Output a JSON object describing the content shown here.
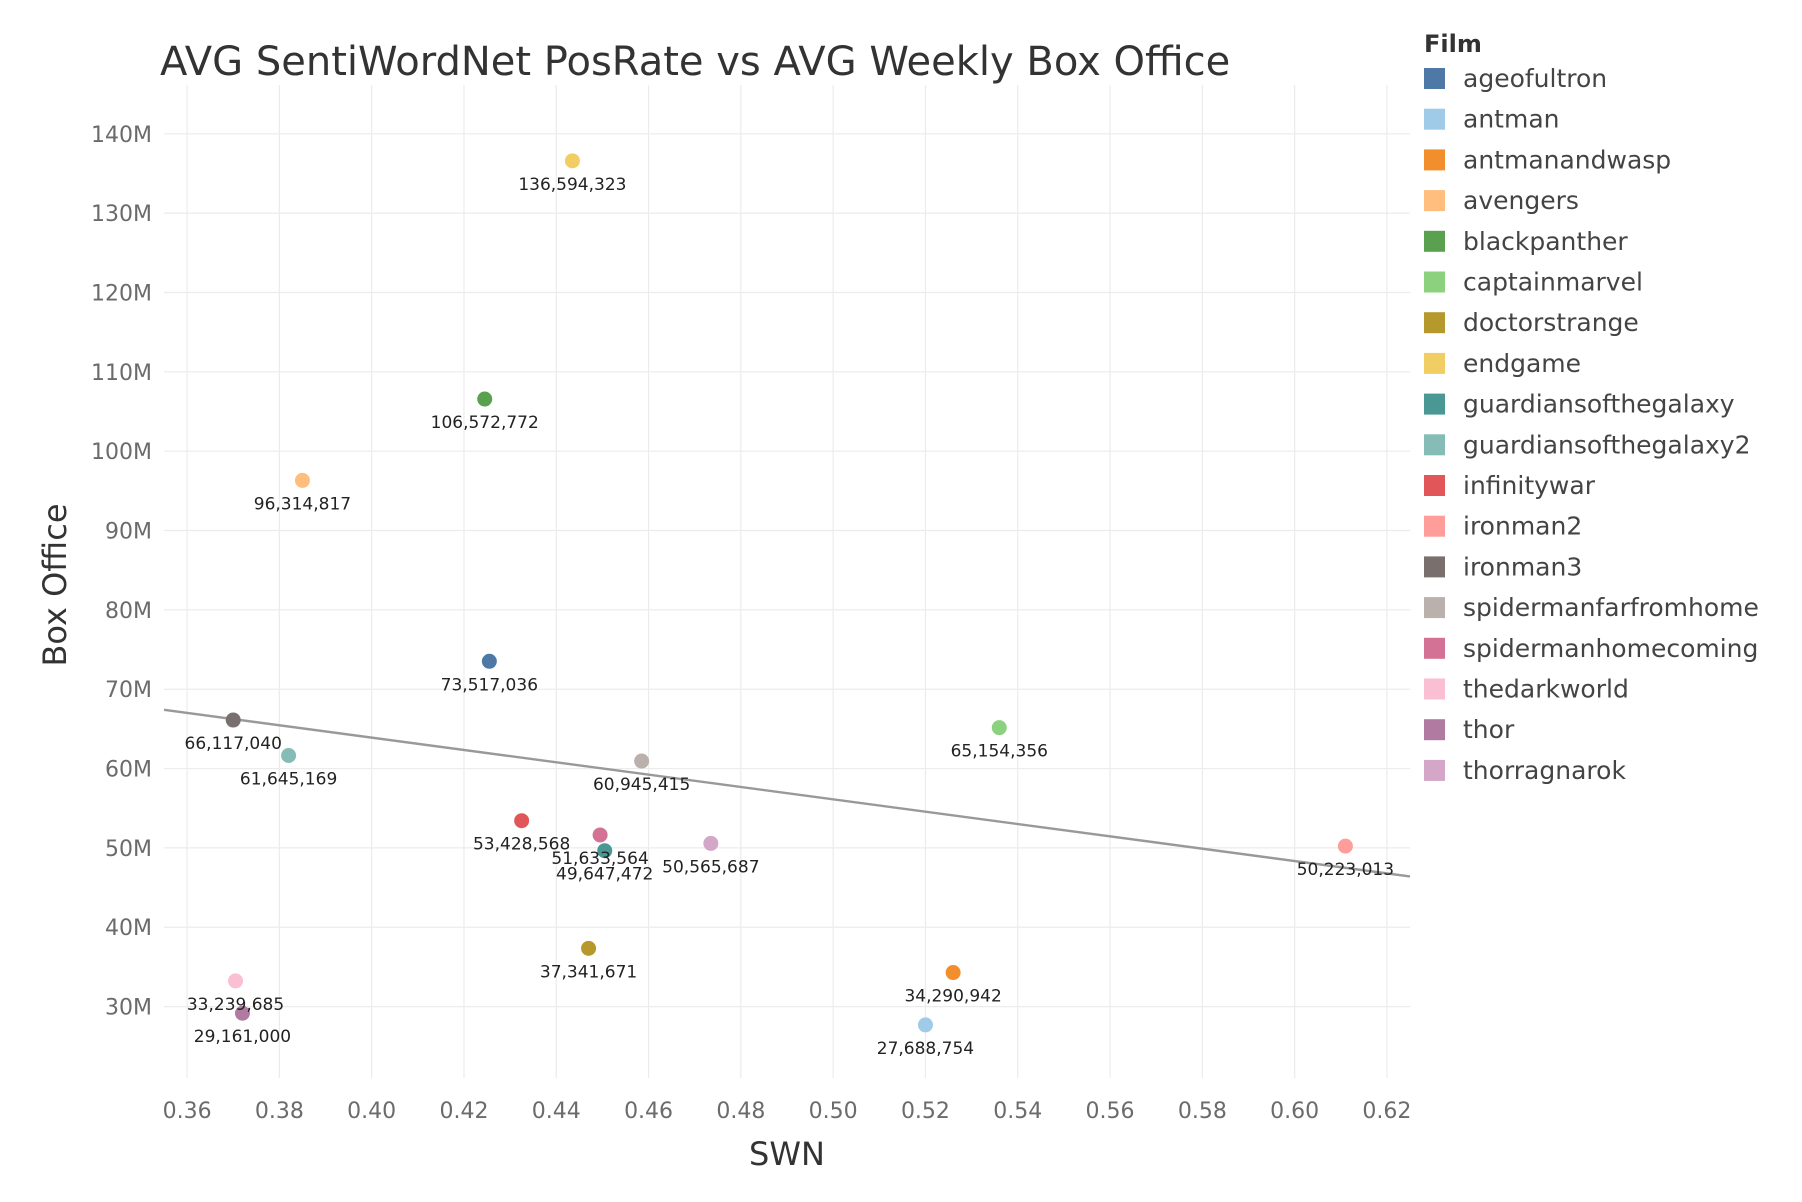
{
  "chart_data": {
    "type": "scatter",
    "title": "AVG SentiWordNet PosRate vs AVG Weekly Box Office",
    "xlabel": "SWN",
    "ylabel": "Box Office",
    "xlim": [
      0.355,
      0.625
    ],
    "ylim": [
      21000000,
      143000000
    ],
    "x_ticks": [
      0.36,
      0.38,
      0.4,
      0.42,
      0.44,
      0.46,
      0.48,
      0.5,
      0.52,
      0.54,
      0.56,
      0.58,
      0.6,
      0.62
    ],
    "x_tick_labels": [
      "0.36",
      "0.38",
      "0.40",
      "0.42",
      "0.44",
      "0.46",
      "0.48",
      "0.50",
      "0.52",
      "0.54",
      "0.56",
      "0.58",
      "0.60",
      "0.62"
    ],
    "y_ticks": [
      30000000,
      40000000,
      50000000,
      60000000,
      70000000,
      80000000,
      90000000,
      100000000,
      110000000,
      120000000,
      130000000,
      140000000
    ],
    "y_tick_labels": [
      "30M",
      "40M",
      "50M",
      "60M",
      "70M",
      "80M",
      "90M",
      "100M",
      "110M",
      "120M",
      "130M",
      "140M"
    ],
    "grid": true,
    "legend": {
      "title": "Film",
      "placement": "right"
    },
    "trend_line": {
      "x": [
        0.355,
        0.625
      ],
      "y": [
        67400000,
        46400000
      ],
      "color": "#999999"
    },
    "series": [
      {
        "name": "ageofultron",
        "color": "#4e79a7",
        "x": 0.4255,
        "y": 73517036,
        "label": "73,517,036"
      },
      {
        "name": "antman",
        "color": "#a0cbe8",
        "x": 0.52,
        "y": 27688754,
        "label": "27,688,754"
      },
      {
        "name": "antmanandwasp",
        "color": "#f28e2b",
        "x": 0.526,
        "y": 34290942,
        "label": "34,290,942"
      },
      {
        "name": "avengers",
        "color": "#ffbe7d",
        "x": 0.385,
        "y": 96314817,
        "label": "96,314,817"
      },
      {
        "name": "blackpanther",
        "color": "#59a14f",
        "x": 0.4245,
        "y": 106572772,
        "label": "106,572,772"
      },
      {
        "name": "captainmarvel",
        "color": "#8cd17d",
        "x": 0.536,
        "y": 65154356,
        "label": "65,154,356"
      },
      {
        "name": "doctorstrange",
        "color": "#b6992d",
        "x": 0.447,
        "y": 37341671,
        "label": "37,341,671"
      },
      {
        "name": "endgame",
        "color": "#f1ce63",
        "x": 0.4435,
        "y": 136594323,
        "label": "136,594,323"
      },
      {
        "name": "guardiansofthegalaxy",
        "color": "#499894",
        "x": 0.4505,
        "y": 49647472,
        "label": "49,647,472"
      },
      {
        "name": "guardiansofthegalaxy2",
        "color": "#86bcb6",
        "x": 0.382,
        "y": 61645169,
        "label": "61,645,169"
      },
      {
        "name": "infinitywar",
        "color": "#e15759",
        "x": 0.4325,
        "y": 53428568,
        "label": "53,428,568"
      },
      {
        "name": "ironman2",
        "color": "#ff9d9a",
        "x": 0.611,
        "y": 50223013,
        "label": "50,223,013"
      },
      {
        "name": "ironman3",
        "color": "#79706e",
        "x": 0.37,
        "y": 66117040,
        "label": "66,117,040"
      },
      {
        "name": "spidermanfarfromhome",
        "color": "#bab0ac",
        "x": 0.4585,
        "y": 60945415,
        "label": "60,945,415"
      },
      {
        "name": "spidermanhomecoming",
        "color": "#d37295",
        "x": 0.4495,
        "y": 51633564,
        "label": "51,633,564"
      },
      {
        "name": "thedarkworld",
        "color": "#fabfd2",
        "x": 0.3705,
        "y": 33239685,
        "label": "33,239,685"
      },
      {
        "name": "thor",
        "color": "#b07aa1",
        "x": 0.372,
        "y": 29161000,
        "label": "29,161,000"
      },
      {
        "name": "thorragnarok",
        "color": "#d4a6c8",
        "x": 0.4735,
        "y": 50565687,
        "label": "50,565,687"
      }
    ]
  }
}
